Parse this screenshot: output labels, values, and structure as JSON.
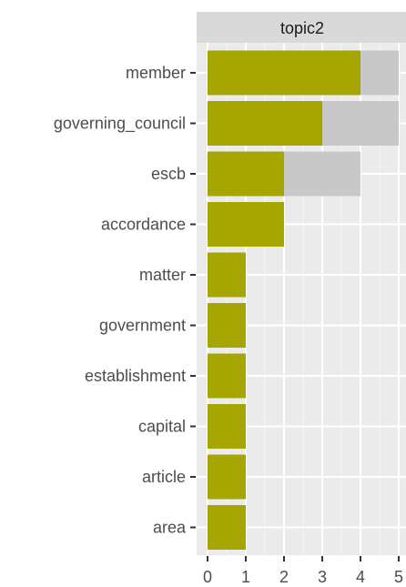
{
  "chart_data": {
    "type": "bar",
    "orientation": "horizontal",
    "facet_label": "topic2",
    "categories": [
      "member",
      "governing_council",
      "escb",
      "accordance",
      "matter",
      "government",
      "establishment",
      "capital",
      "article",
      "area"
    ],
    "series": [
      {
        "values": [
          5,
          5,
          4,
          2,
          1,
          1,
          1,
          1,
          1,
          1
        ],
        "color": "#c8c8c8"
      },
      {
        "values": [
          4,
          3,
          2,
          2,
          1,
          1,
          1,
          1,
          1,
          1
        ],
        "color": "#a6a600"
      }
    ],
    "x_ticks": [
      0,
      1,
      2,
      3,
      4,
      5
    ],
    "xlim": [
      -0.3,
      5.0
    ],
    "xlabel": "",
    "ylabel": "",
    "title": "",
    "grid": true,
    "panel_background": "#ebebeb",
    "strip_background": "#d9d9d9"
  }
}
